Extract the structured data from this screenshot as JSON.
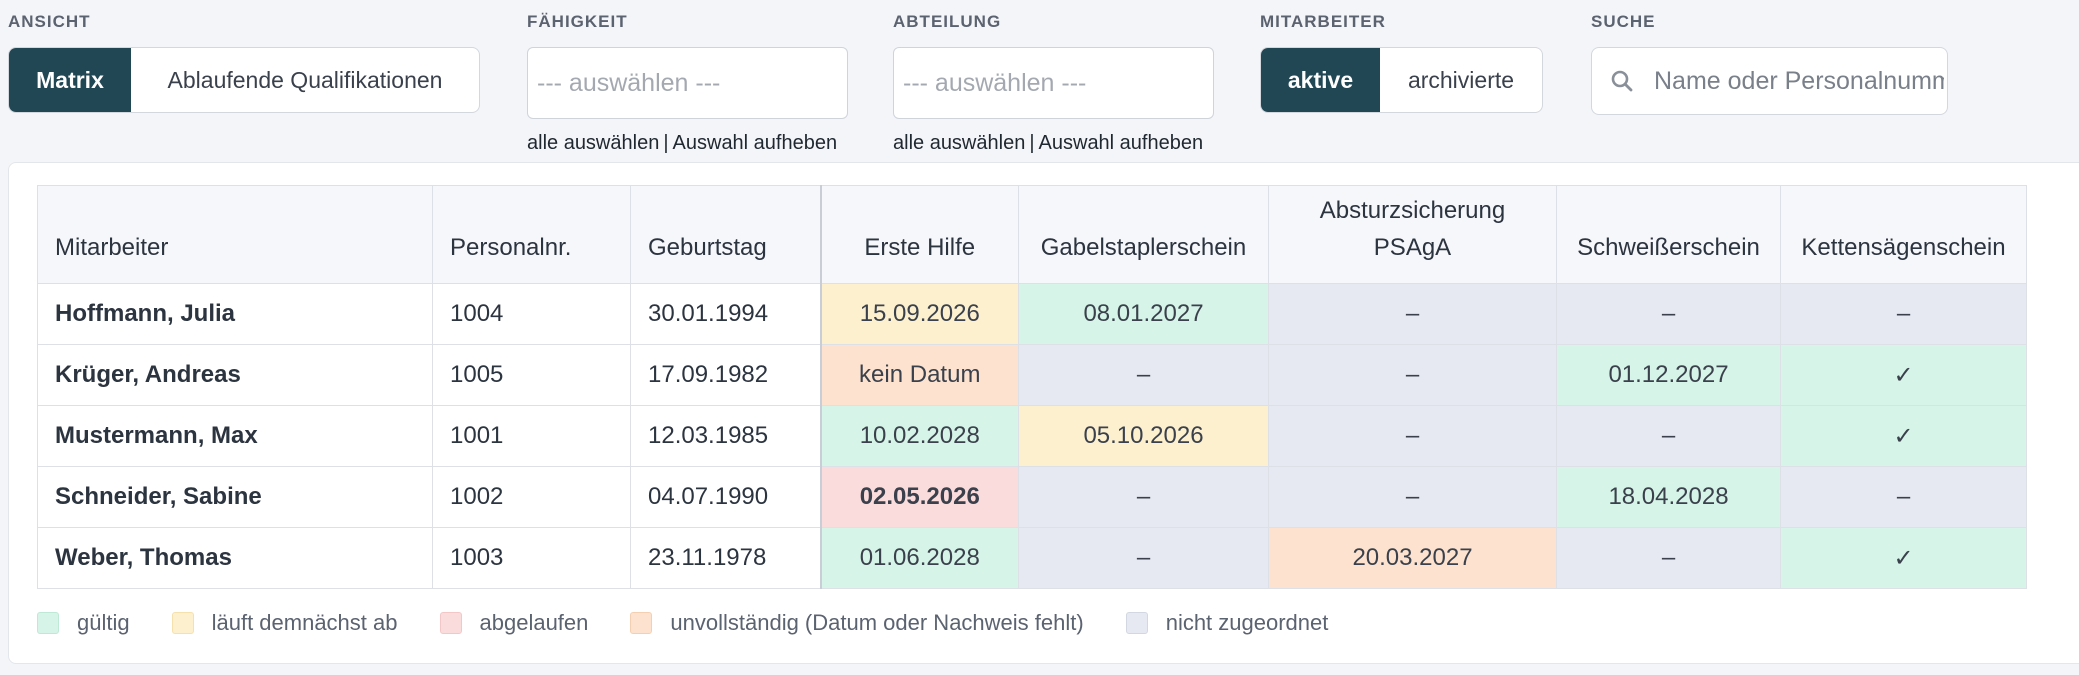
{
  "filters": {
    "ansicht": {
      "label": "ANSICHT",
      "options": [
        "Matrix",
        "Ablaufende Qualifikationen"
      ]
    },
    "faehigkeit": {
      "label": "FÄHIGKEIT",
      "placeholder": "--- auswählen ---",
      "select_all": "alle auswählen",
      "separator": "|",
      "clear": "Auswahl aufheben"
    },
    "abteilung": {
      "label": "ABTEILUNG",
      "placeholder": "--- auswählen ---",
      "select_all": "alle auswählen",
      "separator": "|",
      "clear": "Auswahl aufheben"
    },
    "mitarbeiter": {
      "label": "MITARBEITER",
      "options": [
        "aktive",
        "archivierte"
      ]
    },
    "suche": {
      "label": "SUCHE",
      "placeholder": "Name oder Personalnummer"
    }
  },
  "table": {
    "headers": {
      "name": "Mitarbeiter",
      "pnr": "Personalnr.",
      "birthday": "Geburtstag",
      "skills": [
        "Erste Hilfe",
        "Gabelstaplerschein",
        "Absturzsicherung PSAgA",
        "Schweißerschein",
        "Kettensägenschein"
      ]
    },
    "rows": [
      {
        "name": "Hoffmann, Julia",
        "pnr": "1004",
        "birthday": "30.01.1994",
        "cells": [
          {
            "text": "15.09.2026",
            "status": "soon"
          },
          {
            "text": "08.01.2027",
            "status": "valid"
          },
          {
            "text": "–",
            "status": "none"
          },
          {
            "text": "–",
            "status": "none"
          },
          {
            "text": "–",
            "status": "none"
          }
        ]
      },
      {
        "name": "Krüger, Andreas",
        "pnr": "1005",
        "birthday": "17.09.1982",
        "cells": [
          {
            "text": "kein Datum",
            "status": "incomplete"
          },
          {
            "text": "–",
            "status": "none"
          },
          {
            "text": "–",
            "status": "none"
          },
          {
            "text": "01.12.2027",
            "status": "valid"
          },
          {
            "text": "✓",
            "status": "valid"
          }
        ]
      },
      {
        "name": "Mustermann, Max",
        "pnr": "1001",
        "birthday": "12.03.1985",
        "cells": [
          {
            "text": "10.02.2028",
            "status": "valid"
          },
          {
            "text": "05.10.2026",
            "status": "soon"
          },
          {
            "text": "–",
            "status": "none"
          },
          {
            "text": "–",
            "status": "none"
          },
          {
            "text": "✓",
            "status": "valid"
          }
        ]
      },
      {
        "name": "Schneider, Sabine",
        "pnr": "1002",
        "birthday": "04.07.1990",
        "cells": [
          {
            "text": "02.05.2026",
            "status": "expired"
          },
          {
            "text": "–",
            "status": "none"
          },
          {
            "text": "–",
            "status": "none"
          },
          {
            "text": "18.04.2028",
            "status": "valid"
          },
          {
            "text": "–",
            "status": "none"
          }
        ]
      },
      {
        "name": "Weber, Thomas",
        "pnr": "1003",
        "birthday": "23.11.1978",
        "cells": [
          {
            "text": "01.06.2028",
            "status": "valid"
          },
          {
            "text": "–",
            "status": "none"
          },
          {
            "text": "20.03.2027",
            "status": "incomplete"
          },
          {
            "text": "–",
            "status": "none"
          },
          {
            "text": "✓",
            "status": "valid"
          }
        ]
      }
    ]
  },
  "legend": [
    {
      "label": "gültig",
      "status": "valid",
      "color": "#d6f4e7",
      "border": "#bfe9d6"
    },
    {
      "label": "läuft demnächst ab",
      "status": "soon",
      "color": "#fdf0cf",
      "border": "#f6e1ad"
    },
    {
      "label": "abgelaufen",
      "status": "expired",
      "color": "#fbdcdc",
      "border": "#f3c7c7"
    },
    {
      "label": "unvollständig (Datum oder Nachweis fehlt)",
      "status": "incomplete",
      "color": "#fde3cf",
      "border": "#f5cfb1"
    },
    {
      "label": "nicht zugeordnet",
      "status": "none",
      "color": "#e6e9f1",
      "border": "#d2d7e1"
    }
  ]
}
